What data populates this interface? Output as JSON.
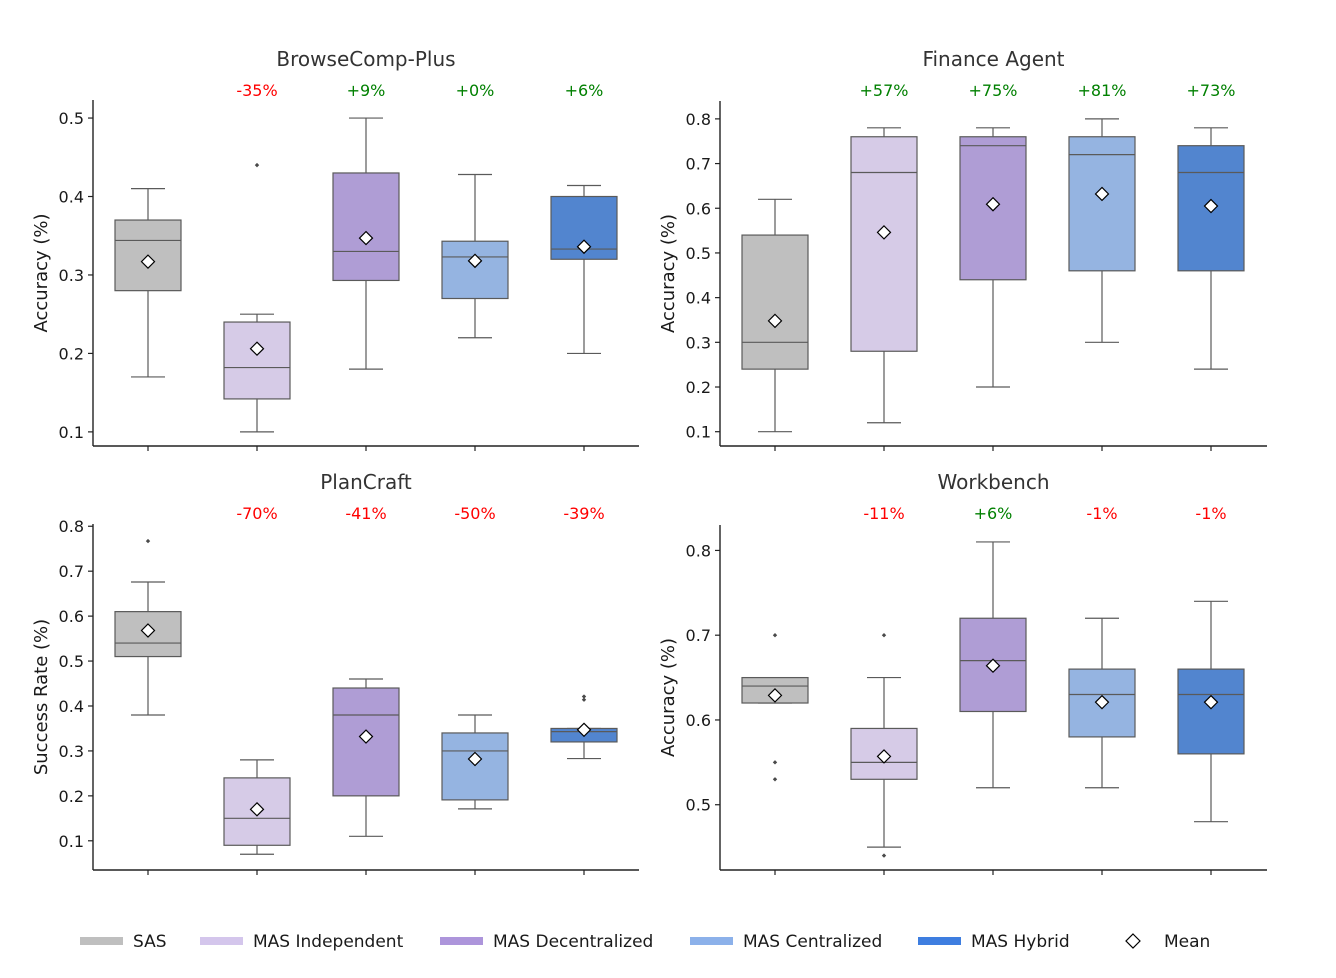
{
  "chart_data": {
    "type": "box",
    "groups": [
      "SAS",
      "MAS Independent",
      "MAS Decentralized",
      "MAS Centralized",
      "MAS Hybrid"
    ],
    "colors": {
      "SAS": "#bfbfbf",
      "MAS Independent": "#d6cbe7",
      "MAS Decentralized": "#af9dd5",
      "MAS Centralized": "#95b4e1",
      "MAS Hybrid": "#5285cf"
    },
    "legend_colors": {
      "SAS": "#bfbfbf",
      "MAS Independent": "#d4c6ec",
      "MAS Decentralized": "#ad95db",
      "MAS Centralized": "#8cb1ea",
      "MAS Hybrid": "#3e7ee0"
    },
    "positive_color": "#008000",
    "negative_color": "#ff0000",
    "legend": {
      "position": "bottom",
      "entries": [
        "SAS",
        "MAS Independent",
        "MAS Decentralized",
        "MAS Centralized",
        "MAS Hybrid",
        "Mean"
      ]
    },
    "panels": [
      {
        "title": "BrowseComp-Plus",
        "ylabel": "Accuracy (%)",
        "ylim": [
          0.082,
          0.523
        ],
        "yticks": [
          0.1,
          0.2,
          0.3,
          0.4,
          0.5
        ],
        "ytick_labels": [
          "0.1",
          "0.2",
          "0.3",
          "0.4",
          "0.5"
        ],
        "annotations": [
          "",
          "-35%",
          "+9%",
          "+0%",
          "+6%"
        ],
        "boxes": [
          {
            "whisker_low": 0.17,
            "q1": 0.28,
            "median": 0.344,
            "q3": 0.37,
            "whisker_high": 0.41,
            "mean": 0.317,
            "outliers": []
          },
          {
            "whisker_low": 0.1,
            "q1": 0.142,
            "median": 0.182,
            "q3": 0.24,
            "whisker_high": 0.25,
            "mean": 0.206,
            "outliers": [
              0.44
            ]
          },
          {
            "whisker_low": 0.18,
            "q1": 0.293,
            "median": 0.33,
            "q3": 0.43,
            "whisker_high": 0.5,
            "mean": 0.347,
            "outliers": []
          },
          {
            "whisker_low": 0.22,
            "q1": 0.27,
            "median": 0.323,
            "q3": 0.343,
            "whisker_high": 0.428,
            "mean": 0.318,
            "outliers": []
          },
          {
            "whisker_low": 0.2,
            "q1": 0.32,
            "median": 0.333,
            "q3": 0.4,
            "whisker_high": 0.414,
            "mean": 0.336,
            "outliers": []
          }
        ]
      },
      {
        "title": "Finance Agent",
        "ylabel": "Accuracy (%)",
        "ylim": [
          0.068,
          0.84
        ],
        "yticks": [
          0.1,
          0.2,
          0.3,
          0.4,
          0.5,
          0.6,
          0.7,
          0.8
        ],
        "ytick_labels": [
          "0.1",
          "0.2",
          "0.3",
          "0.4",
          "0.5",
          "0.6",
          "0.7",
          "0.8"
        ],
        "annotations": [
          "",
          "+57%",
          "+75%",
          "+81%",
          "+73%"
        ],
        "boxes": [
          {
            "whisker_low": 0.1,
            "q1": 0.24,
            "median": 0.3,
            "q3": 0.54,
            "whisker_high": 0.62,
            "mean": 0.348,
            "outliers": []
          },
          {
            "whisker_low": 0.12,
            "q1": 0.28,
            "median": 0.68,
            "q3": 0.76,
            "whisker_high": 0.78,
            "mean": 0.546,
            "outliers": []
          },
          {
            "whisker_low": 0.2,
            "q1": 0.44,
            "median": 0.74,
            "q3": 0.76,
            "whisker_high": 0.78,
            "mean": 0.609,
            "outliers": []
          },
          {
            "whisker_low": 0.3,
            "q1": 0.46,
            "median": 0.72,
            "q3": 0.76,
            "whisker_high": 0.8,
            "mean": 0.632,
            "outliers": []
          },
          {
            "whisker_low": 0.24,
            "q1": 0.46,
            "median": 0.68,
            "q3": 0.74,
            "whisker_high": 0.78,
            "mean": 0.605,
            "outliers": []
          }
        ]
      },
      {
        "title": "PlanCraft",
        "ylabel": "Success Rate (%)",
        "ylim": [
          0.035,
          0.805
        ],
        "yticks": [
          0.1,
          0.2,
          0.3,
          0.4,
          0.5,
          0.6,
          0.7,
          0.8
        ],
        "ytick_labels": [
          "0.1",
          "0.2",
          "0.3",
          "0.4",
          "0.5",
          "0.6",
          "0.7",
          "0.8"
        ],
        "annotations": [
          "",
          "-70%",
          "-41%",
          "-50%",
          "-39%"
        ],
        "boxes": [
          {
            "whisker_low": 0.38,
            "q1": 0.51,
            "median": 0.54,
            "q3": 0.61,
            "whisker_high": 0.676,
            "mean": 0.568,
            "outliers": [
              0.767
            ]
          },
          {
            "whisker_low": 0.07,
            "q1": 0.09,
            "median": 0.15,
            "q3": 0.24,
            "whisker_high": 0.28,
            "mean": 0.17,
            "outliers": []
          },
          {
            "whisker_low": 0.11,
            "q1": 0.2,
            "median": 0.38,
            "q3": 0.44,
            "whisker_high": 0.46,
            "mean": 0.332,
            "outliers": []
          },
          {
            "whisker_low": 0.171,
            "q1": 0.191,
            "median": 0.3,
            "q3": 0.34,
            "whisker_high": 0.38,
            "mean": 0.282,
            "outliers": []
          },
          {
            "whisker_low": 0.283,
            "q1": 0.32,
            "median": 0.343,
            "q3": 0.35,
            "whisker_high": 0.35,
            "mean": 0.347,
            "outliers": [
              0.414,
              0.421
            ]
          }
        ]
      },
      {
        "title": "Workbench",
        "ylabel": "Accuracy (%)",
        "ylim": [
          0.423,
          0.83
        ],
        "yticks": [
          0.5,
          0.6,
          0.7,
          0.8
        ],
        "ytick_labels": [
          "0.5",
          "0.6",
          "0.7",
          "0.8"
        ],
        "annotations": [
          "",
          "-11%",
          "+6%",
          "-1%",
          "-1%"
        ],
        "boxes": [
          {
            "whisker_low": 0.62,
            "q1": 0.62,
            "median": 0.64,
            "q3": 0.65,
            "whisker_high": 0.65,
            "mean": 0.629,
            "outliers": [
              0.7,
              0.55,
              0.53
            ]
          },
          {
            "whisker_low": 0.45,
            "q1": 0.53,
            "median": 0.55,
            "q3": 0.59,
            "whisker_high": 0.65,
            "mean": 0.557,
            "outliers": [
              0.7,
              0.44
            ]
          },
          {
            "whisker_low": 0.52,
            "q1": 0.61,
            "median": 0.67,
            "q3": 0.72,
            "whisker_high": 0.81,
            "mean": 0.664,
            "outliers": []
          },
          {
            "whisker_low": 0.52,
            "q1": 0.58,
            "median": 0.63,
            "q3": 0.66,
            "whisker_high": 0.72,
            "mean": 0.621,
            "outliers": []
          },
          {
            "whisker_low": 0.48,
            "q1": 0.56,
            "median": 0.63,
            "q3": 0.66,
            "whisker_high": 0.74,
            "mean": 0.621,
            "outliers": []
          }
        ]
      }
    ]
  }
}
